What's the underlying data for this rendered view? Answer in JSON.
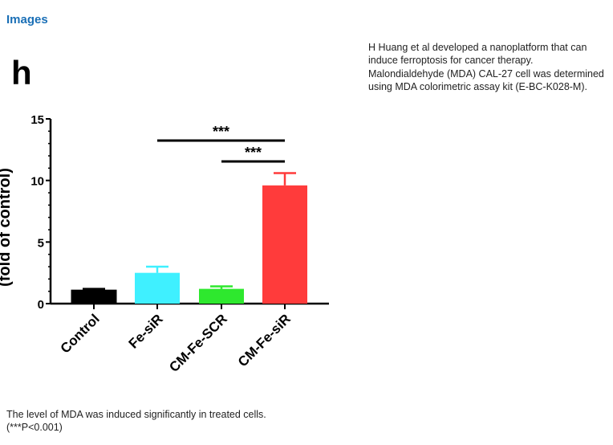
{
  "section": {
    "title": "Images"
  },
  "description": "H Huang et al developed a nanoplatform that can induce ferroptosis for cancer therapy. Malondialdehyde (MDA) CAL-27 cell was determined using MDA colorimetric assay kit (E-BC-K028-M).",
  "caption": {
    "line1": "The level of MDA was induced significantly in treated cells.",
    "line2": "(***P<0.001)"
  },
  "chart_data": {
    "type": "bar",
    "panel_label": "h",
    "ylabel": "(fold of control)",
    "categories": [
      "Control",
      "Fe-siR",
      "CM-Fe-SCR",
      "CM-Fe-siR"
    ],
    "values": [
      1.1,
      2.5,
      1.2,
      9.6
    ],
    "errors": [
      0.1,
      0.5,
      0.2,
      1.0
    ],
    "colors": [
      "#000000",
      "#3ff0ff",
      "#2ee82e",
      "#ff3b3b"
    ],
    "ylim": [
      0,
      15
    ],
    "yticks": [
      0,
      5,
      10,
      15
    ],
    "significance": [
      {
        "from": "Fe-siR",
        "to": "CM-Fe-siR",
        "label": "***"
      },
      {
        "from": "CM-Fe-SCR",
        "to": "CM-Fe-siR",
        "label": "***"
      }
    ],
    "grid": false,
    "legend": "none"
  }
}
